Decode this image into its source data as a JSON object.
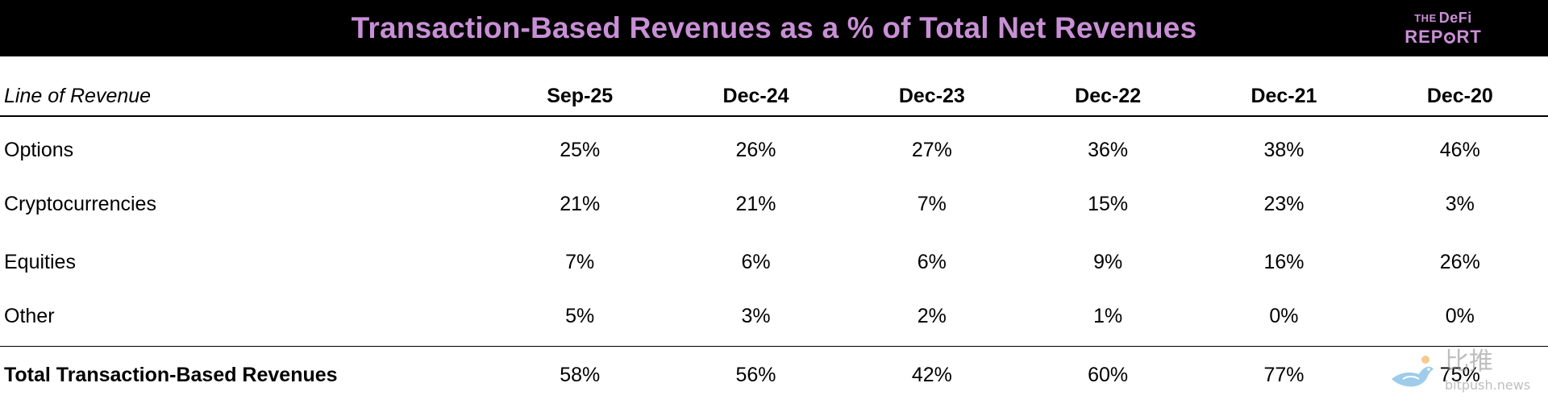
{
  "header": {
    "title": "Transaction-Based Revenues as a % of Total Net Revenues",
    "logo_line1_small": "THE",
    "logo_line1_main": "DeFi",
    "logo_line2_pre": "REP",
    "logo_line2_post": "RT",
    "title_color": "#c98fd6",
    "background": "#000000"
  },
  "table": {
    "row_header_label": "Line of Revenue",
    "columns": [
      "Sep-25",
      "Dec-24",
      "Dec-23",
      "Dec-22",
      "Dec-21",
      "Dec-20"
    ],
    "rows": [
      {
        "label": "Options",
        "values": [
          "25%",
          "26%",
          "27%",
          "36%",
          "38%",
          "46%"
        ]
      },
      {
        "label": "Cryptocurrencies",
        "values": [
          "21%",
          "21%",
          "7%",
          "15%",
          "23%",
          "3%"
        ]
      },
      {
        "label": "Equities",
        "values": [
          "7%",
          "6%",
          "6%",
          "9%",
          "16%",
          "26%"
        ]
      },
      {
        "label": "Other",
        "values": [
          "5%",
          "3%",
          "2%",
          "1%",
          "0%",
          "0%"
        ]
      }
    ],
    "total": {
      "label": "Total Transaction-Based Revenues",
      "values": [
        "58%",
        "56%",
        "42%",
        "60%",
        "77%",
        "75%"
      ]
    }
  },
  "watermark": {
    "name": "比推",
    "url": "bitpush.news",
    "icon": "bird-icon"
  }
}
